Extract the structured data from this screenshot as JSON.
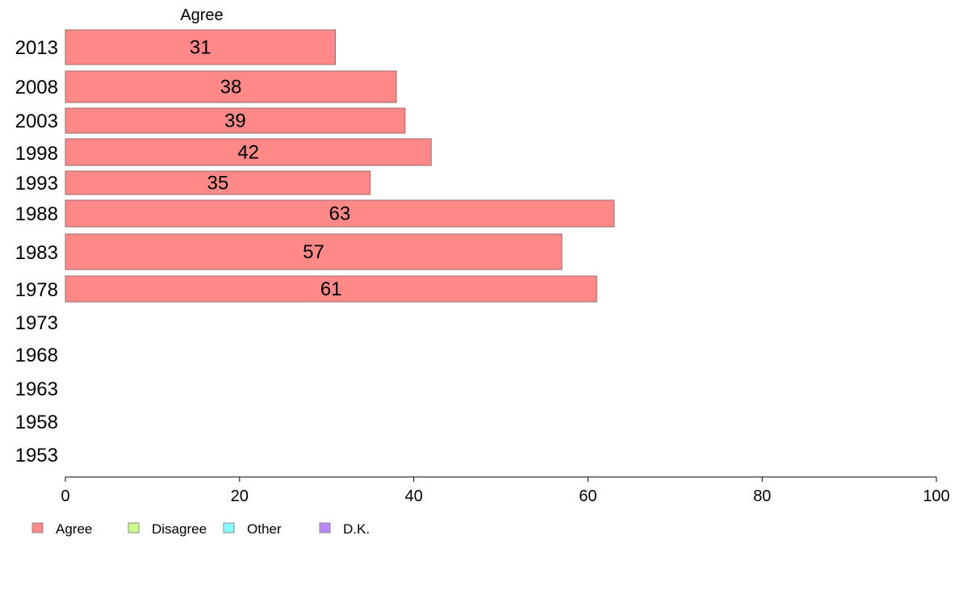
{
  "chart_data": {
    "type": "bar",
    "orientation": "horizontal",
    "title": "Agree",
    "categories": [
      "2013",
      "2008",
      "2003",
      "1998",
      "1993",
      "1988",
      "1983",
      "1978",
      "1973",
      "1968",
      "1963",
      "1958",
      "1953"
    ],
    "series": [
      {
        "name": "Agree",
        "color": "#ff8888",
        "values": [
          31,
          38,
          39,
          42,
          35,
          63,
          57,
          61,
          null,
          null,
          null,
          null,
          null
        ]
      }
    ],
    "xlim": [
      0,
      100
    ],
    "xticks": [
      "0",
      "20",
      "40",
      "60",
      "80",
      "100"
    ],
    "grid": false,
    "legend": {
      "placement": "bottom-left",
      "items": [
        {
          "label": "Agree",
          "color": "#ff8888"
        },
        {
          "label": "Disagree",
          "color": "#ccff88"
        },
        {
          "label": "Other",
          "color": "#88ffff"
        },
        {
          "label": "D.K.",
          "color": "#bb88ff"
        }
      ]
    }
  }
}
